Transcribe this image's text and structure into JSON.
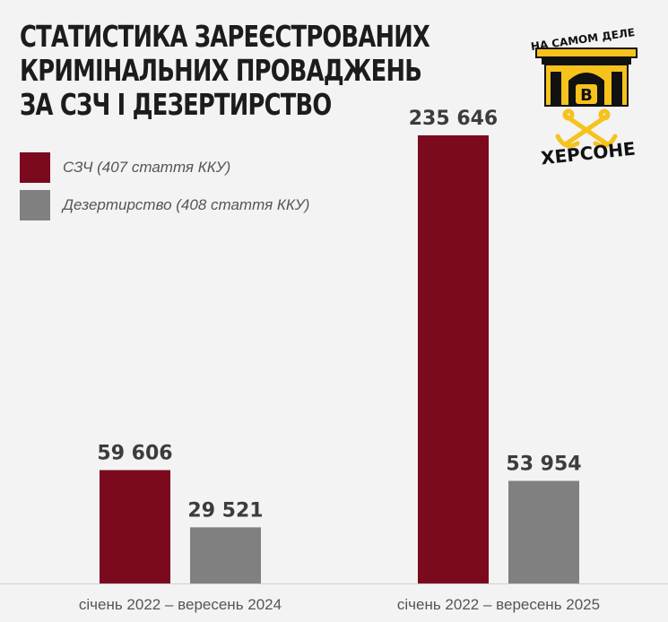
{
  "title_lines": [
    "СТАТИСТИКА ЗАРЕЄСТРОВАНИХ",
    "КРИМІНАЛЬНИХ ПРОВАДЖЕНЬ",
    "ЗА СЗЧ І ДЕЗЕРТИРСТВО"
  ],
  "logo": {
    "top_text": "НА САМОМ ДЕЛЕ",
    "center_letter": "В",
    "bottom_text": "ХЕРСОНЕ",
    "colors": {
      "gold": "#f6c21c",
      "ink": "#111111"
    }
  },
  "colors": {
    "szch": "#7b0a1f",
    "desertion": "#808080",
    "background": "#f3f3f3"
  },
  "chart_data": {
    "type": "bar",
    "categories": [
      "січень 2022 – вересень 2024",
      "січень 2022 – вересень 2025"
    ],
    "series": [
      {
        "name": "СЗЧ (407 стаття ККУ)",
        "values": [
          59606,
          235646
        ],
        "labels": [
          "59 606",
          "235 646"
        ],
        "color": "#7b0a1f"
      },
      {
        "name": "Дезертирство (408 стаття ККУ)",
        "values": [
          29521,
          53954
        ],
        "labels": [
          "29 521",
          "53 954"
        ],
        "color": "#808080"
      }
    ],
    "legend_position": "top-left",
    "grid": false
  }
}
